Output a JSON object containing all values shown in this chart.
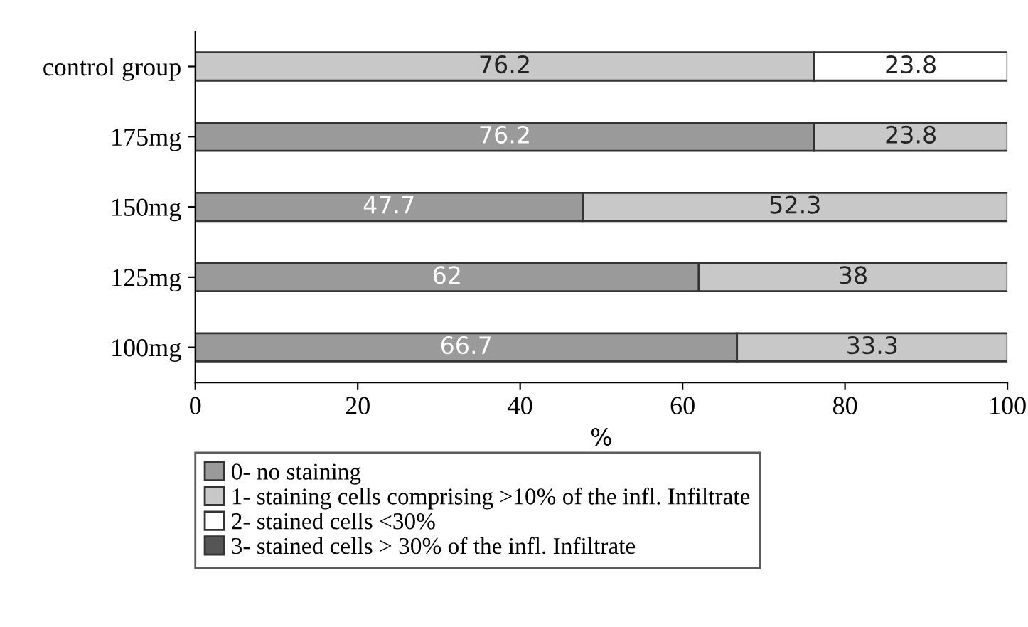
{
  "chart_data": {
    "type": "bar",
    "orientation": "horizontal",
    "stacked": true,
    "categories": [
      "control group",
      "175mg",
      "150mg",
      "125mg",
      "100mg"
    ],
    "series": [
      {
        "name": "0- no staining",
        "color": "#9a9a9a",
        "values": [
          null,
          76.2,
          47.7,
          62,
          66.7
        ]
      },
      {
        "name": "1- staining cells comprising >10% of the infl. Infiltrate",
        "color": "#c8c8c8",
        "values": [
          76.2,
          23.8,
          52.3,
          38,
          33.3
        ]
      },
      {
        "name": "2- stained cells <30%",
        "color": "#ffffff",
        "values": [
          23.8,
          null,
          null,
          null,
          null
        ]
      },
      {
        "name": "3- stained cells > 30% of the infl. Infiltrate",
        "color": "#555555",
        "values": [
          null,
          null,
          null,
          null,
          null
        ]
      }
    ],
    "xlabel": "%",
    "xlim": [
      0,
      100
    ],
    "xticks": [
      0,
      20,
      40,
      60,
      80,
      100
    ],
    "data_labels": true,
    "legend": "bottom",
    "grid": false
  }
}
